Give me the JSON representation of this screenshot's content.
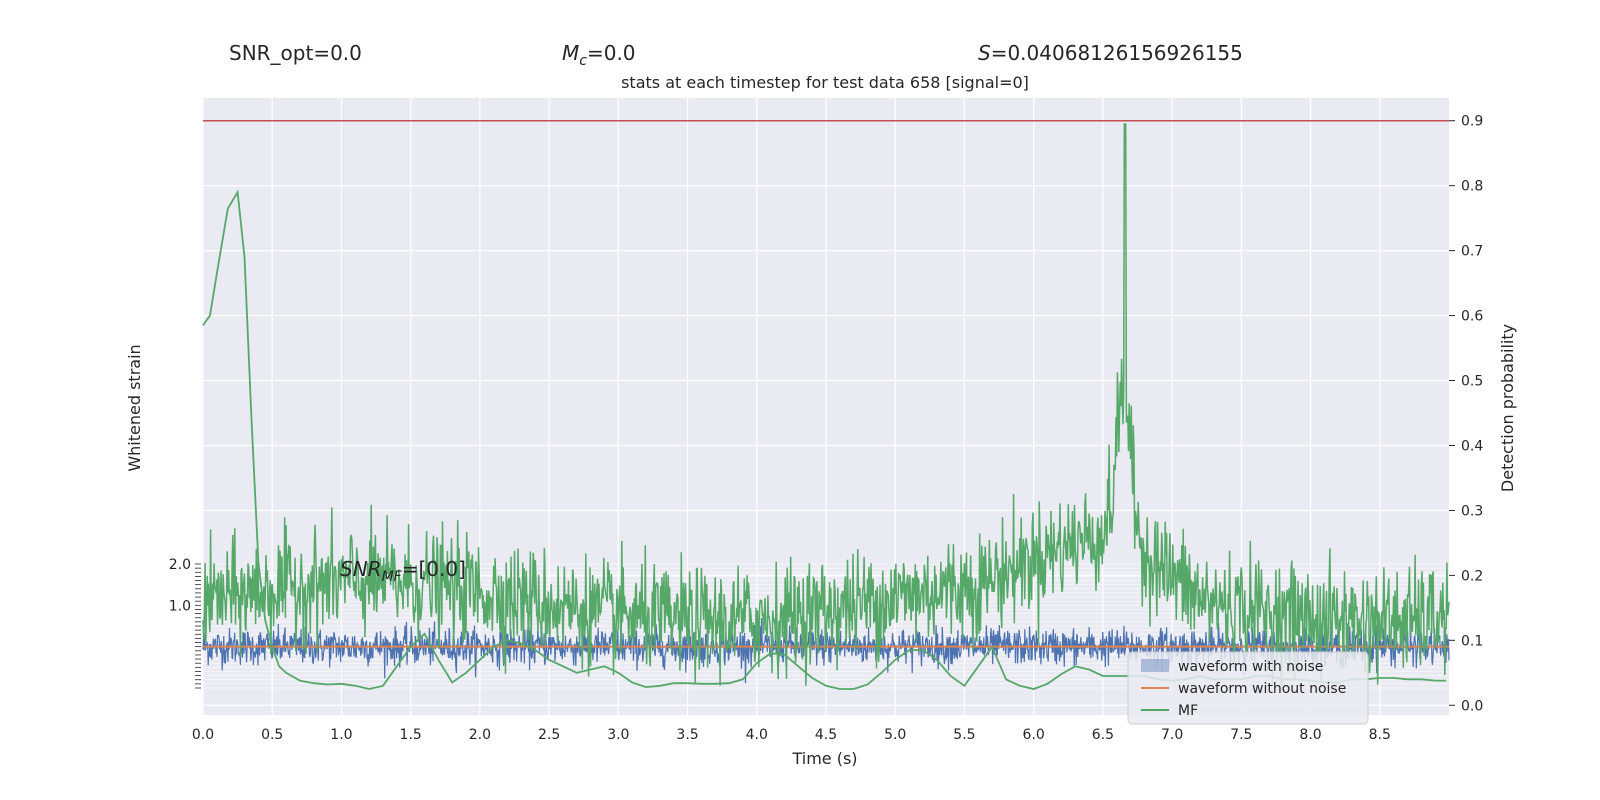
{
  "header": {
    "snr_opt": "SNR_opt=0.0",
    "mc_sym": "M",
    "mc_sub": "c",
    "mc_val": "=0.0",
    "s_sym": "S",
    "s_val": "=0.04068126156926155",
    "snr_mf_sym": "SNR",
    "snr_mf_sub": "MF",
    "snr_mf_val": "=[0.0]"
  },
  "chart_data": {
    "type": "line",
    "title": "stats at each timestep for test data 658 [signal=0]",
    "xlabel": "Time (s)",
    "ylabel_left": "Whitened strain",
    "ylabel_right": "Detection probability",
    "xlim": [
      0.0,
      9.0
    ],
    "ylim_right": [
      -0.015,
      0.935
    ],
    "ylim_left": [
      -1.0,
      2.0
    ],
    "x_ticks": [
      "0.0",
      "0.5",
      "1.0",
      "1.5",
      "2.0",
      "2.5",
      "3.0",
      "3.5",
      "4.0",
      "4.5",
      "5.0",
      "5.5",
      "6.0",
      "6.5",
      "7.0",
      "7.5",
      "8.0",
      "8.5"
    ],
    "y_right_ticks": [
      "0.0",
      "0.1",
      "0.2",
      "0.3",
      "0.4",
      "0.5",
      "0.6",
      "0.7",
      "0.8",
      "0.9"
    ],
    "y_left_ticks": [
      "2.0",
      "1.0"
    ],
    "threshold": {
      "value": 0.9,
      "color": "#c44e52"
    },
    "series": [
      {
        "name": "waveform with noise",
        "color": "#4c72b0",
        "description_level": "noise band around 0 on strain axis"
      },
      {
        "name": "waveform without noise",
        "color": "#dd8452",
        "values_constant": 0.0
      },
      {
        "name": "MF",
        "color": "#55a868"
      }
    ],
    "mf_smooth": {
      "x": [
        0.0,
        0.05,
        0.12,
        0.18,
        0.25,
        0.3,
        0.35,
        0.4,
        0.45,
        0.5,
        0.55,
        0.6,
        0.7,
        0.8,
        0.9,
        1.0,
        1.1,
        1.2,
        1.3,
        1.4,
        1.5,
        1.6,
        1.7,
        1.8,
        1.9,
        2.0,
        2.1,
        2.2,
        2.3,
        2.4,
        2.5,
        2.6,
        2.7,
        2.8,
        2.9,
        3.0,
        3.1,
        3.2,
        3.3,
        3.4,
        3.5,
        3.6,
        3.7,
        3.8,
        3.9,
        4.0,
        4.1,
        4.2,
        4.3,
        4.4,
        4.5,
        4.6,
        4.7,
        4.8,
        4.9,
        5.0,
        5.1,
        5.2,
        5.3,
        5.4,
        5.5,
        5.6,
        5.7,
        5.8,
        5.9,
        6.0,
        6.1,
        6.2,
        6.3,
        6.4,
        6.5,
        6.6,
        6.7,
        6.8,
        6.9,
        7.0,
        7.1,
        7.2,
        7.3,
        7.4,
        7.5,
        7.6,
        7.7,
        7.8,
        7.9,
        8.0,
        8.1,
        8.2,
        8.3,
        8.4,
        8.5,
        8.6,
        8.7,
        8.8,
        8.9,
        8.98
      ],
      "y": [
        0.585,
        0.6,
        0.69,
        0.765,
        0.79,
        0.69,
        0.44,
        0.22,
        0.13,
        0.09,
        0.06,
        0.05,
        0.038,
        0.034,
        0.032,
        0.033,
        0.03,
        0.025,
        0.03,
        0.06,
        0.09,
        0.11,
        0.07,
        0.035,
        0.05,
        0.07,
        0.09,
        0.1,
        0.095,
        0.085,
        0.07,
        0.06,
        0.05,
        0.055,
        0.06,
        0.05,
        0.035,
        0.028,
        0.03,
        0.034,
        0.034,
        0.033,
        0.033,
        0.034,
        0.04,
        0.065,
        0.08,
        0.078,
        0.06,
        0.042,
        0.03,
        0.025,
        0.025,
        0.032,
        0.05,
        0.07,
        0.085,
        0.085,
        0.07,
        0.045,
        0.03,
        0.06,
        0.09,
        0.04,
        0.03,
        0.025,
        0.033,
        0.048,
        0.06,
        0.055,
        0.045,
        0.045,
        0.045,
        0.045,
        0.04,
        0.038,
        0.04,
        0.045,
        0.04,
        0.04,
        0.04,
        0.045,
        0.045,
        0.04,
        0.04,
        0.038,
        0.035,
        0.035,
        0.04,
        0.04,
        0.042,
        0.042,
        0.04,
        0.04,
        0.038,
        0.038
      ]
    },
    "legend": {
      "position": "lower-right"
    }
  }
}
